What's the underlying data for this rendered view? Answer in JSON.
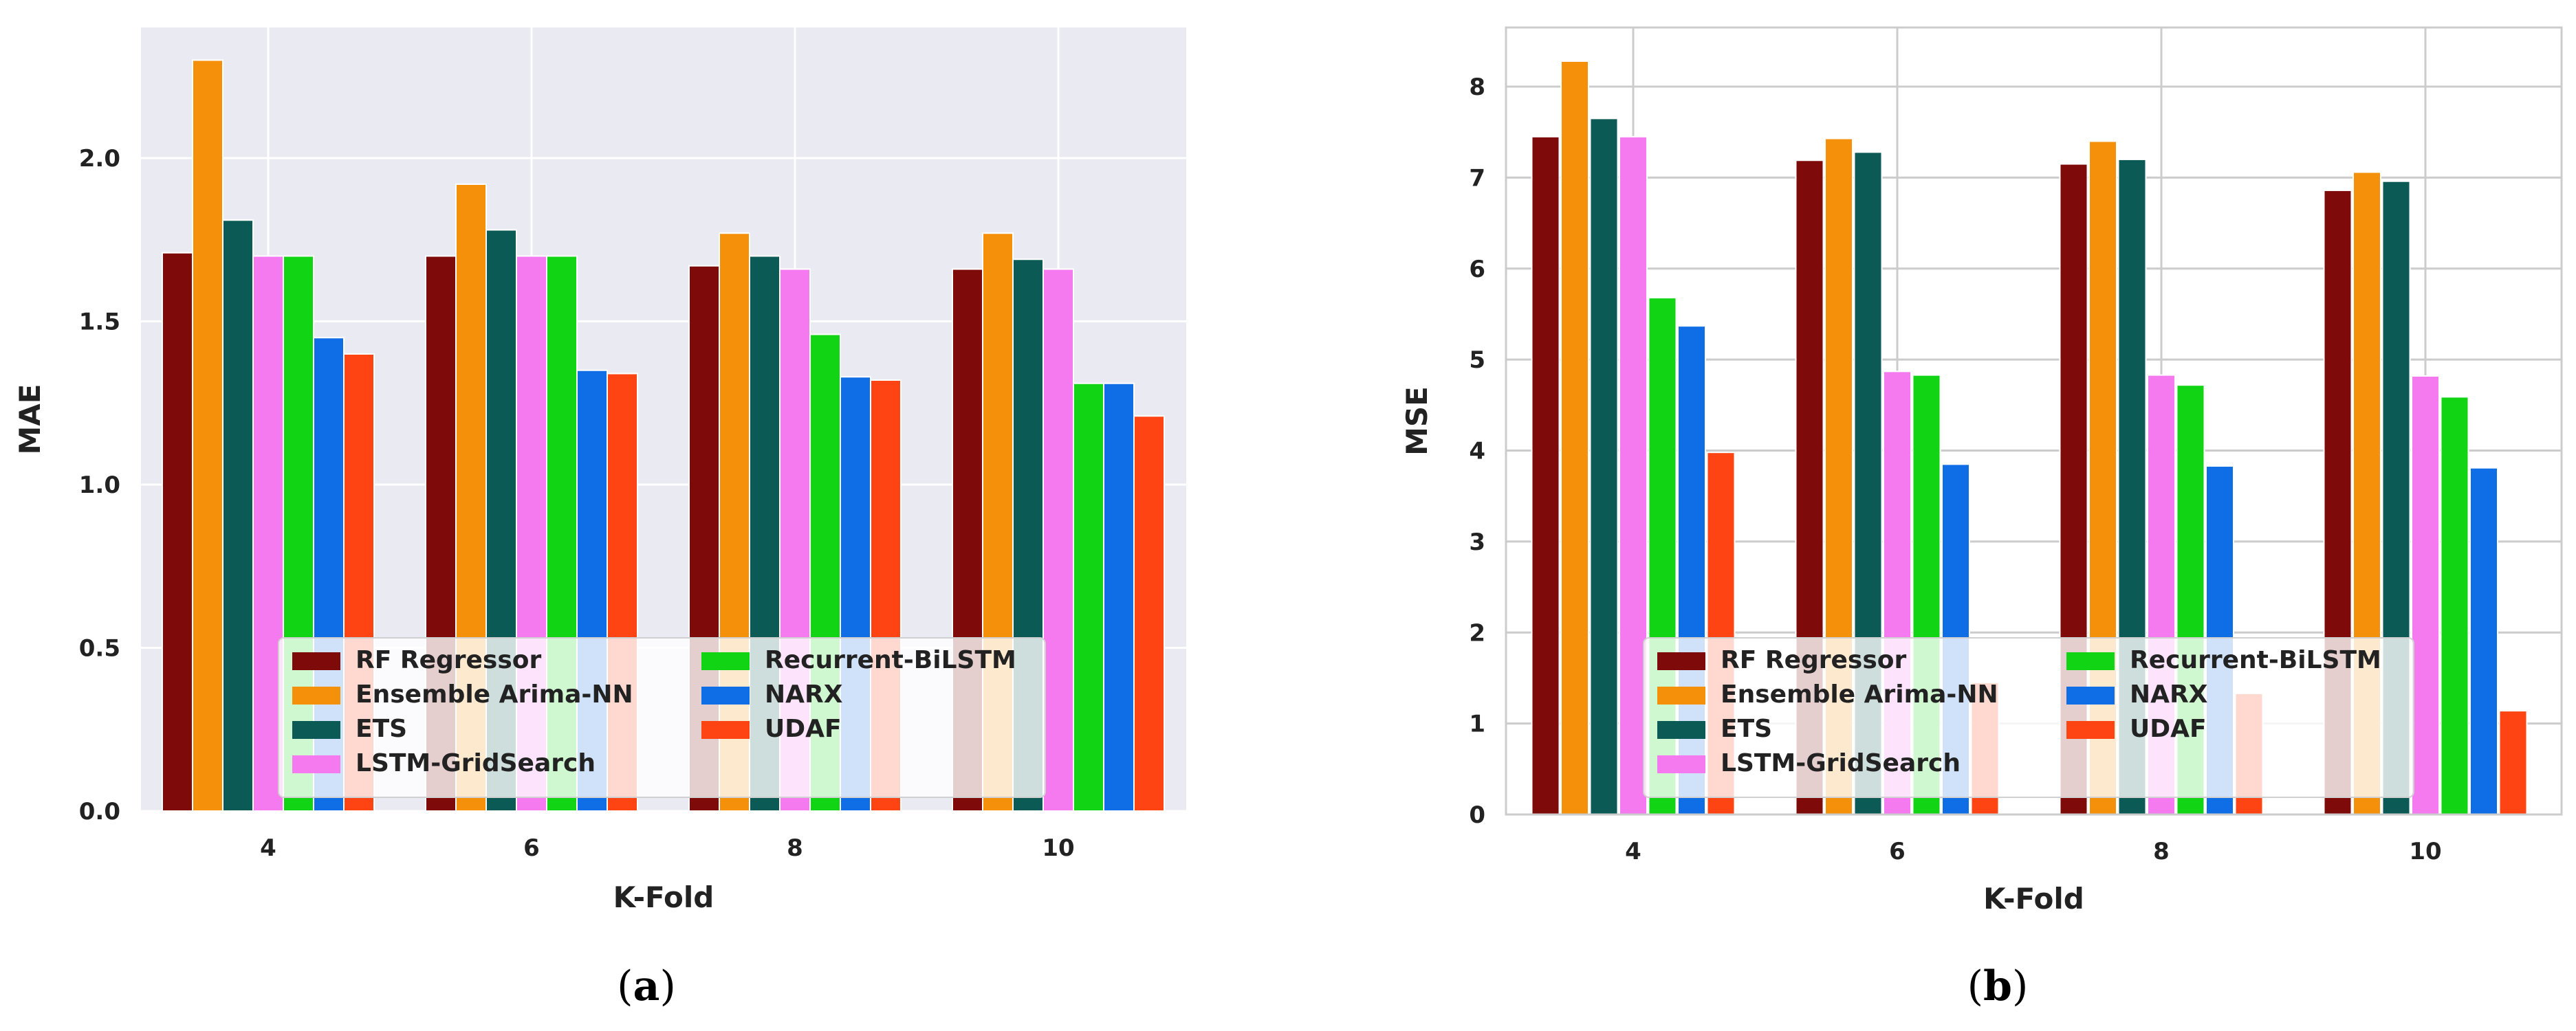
{
  "colors": {
    "rf_regressor": "#7f0a0a",
    "ensemble_arima_nn": "#f5900a",
    "ets": "#0b5a55",
    "lstm_gridsearch": "#f579ef",
    "recurrent_bilstm": "#11d414",
    "narx": "#0f6ee6",
    "udaf": "#ff4413",
    "panel_a_background": "#eaeaf2",
    "panel_b_background": "#ffffff",
    "grid_a": "#ffffff",
    "grid_b": "#cccccc",
    "legend_background": "#ffffff",
    "legend_border": "#d0d0d0"
  },
  "chart_data": [
    {
      "id": "panel-a",
      "type": "bar",
      "caption": {
        "open": "(",
        "letter": "a",
        "close": ")"
      },
      "title": "",
      "xlabel": "K-Fold",
      "ylabel": "MAE",
      "categories": [
        "4",
        "6",
        "8",
        "10"
      ],
      "ylim": [
        0,
        2.4
      ],
      "yticks": [
        0.0,
        0.5,
        1.0,
        1.5,
        2.0
      ],
      "ytick_labels": [
        "0.0",
        "0.5",
        "1.0",
        "1.5",
        "2.0"
      ],
      "grid": true,
      "legend_position": "bottom-center",
      "series": [
        {
          "name": "RF Regressor",
          "color_key": "rf_regressor",
          "values": [
            1.71,
            1.7,
            1.67,
            1.66
          ]
        },
        {
          "name": "Ensemble Arima-NN",
          "color_key": "ensemble_arima_nn",
          "values": [
            2.3,
            1.92,
            1.77,
            1.77
          ]
        },
        {
          "name": "ETS",
          "color_key": "ets",
          "values": [
            1.81,
            1.78,
            1.7,
            1.69
          ]
        },
        {
          "name": "LSTM-GridSearch",
          "color_key": "lstm_gridsearch",
          "values": [
            1.7,
            1.7,
            1.66,
            1.66
          ]
        },
        {
          "name": "Recurrent-BiLSTM",
          "color_key": "recurrent_bilstm",
          "values": [
            1.7,
            1.7,
            1.46,
            1.31
          ]
        },
        {
          "name": "NARX",
          "color_key": "narx",
          "values": [
            1.45,
            1.35,
            1.33,
            1.31
          ]
        },
        {
          "name": "UDAF",
          "color_key": "udaf",
          "values": [
            1.4,
            1.34,
            1.32,
            1.21
          ]
        }
      ]
    },
    {
      "id": "panel-b",
      "type": "bar",
      "caption": {
        "open": "(",
        "letter": "b",
        "close": ")"
      },
      "title": "",
      "xlabel": "K-Fold",
      "ylabel": "MSE",
      "categories": [
        "4",
        "6",
        "8",
        "10"
      ],
      "ylim": [
        0,
        8.65
      ],
      "yticks": [
        0,
        1,
        2,
        3,
        4,
        5,
        6,
        7,
        8
      ],
      "ytick_labels": [
        "0",
        "1",
        "2",
        "3",
        "4",
        "5",
        "6",
        "7",
        "8"
      ],
      "grid": true,
      "legend_position": "bottom-center",
      "series": [
        {
          "name": "RF Regressor",
          "color_key": "rf_regressor",
          "values": [
            7.45,
            7.19,
            7.15,
            6.86
          ]
        },
        {
          "name": "Ensemble Arima-NN",
          "color_key": "ensemble_arima_nn",
          "values": [
            8.28,
            7.43,
            7.4,
            7.06
          ]
        },
        {
          "name": "ETS",
          "color_key": "ets",
          "values": [
            7.65,
            7.28,
            7.2,
            6.96
          ]
        },
        {
          "name": "LSTM-GridSearch",
          "color_key": "lstm_gridsearch",
          "values": [
            7.45,
            4.87,
            4.83,
            4.82
          ]
        },
        {
          "name": "Recurrent-BiLSTM",
          "color_key": "recurrent_bilstm",
          "values": [
            5.68,
            4.83,
            4.72,
            4.59
          ]
        },
        {
          "name": "NARX",
          "color_key": "narx",
          "values": [
            5.37,
            3.85,
            3.83,
            3.81
          ]
        },
        {
          "name": "UDAF",
          "color_key": "udaf",
          "values": [
            3.98,
            1.45,
            1.33,
            1.14
          ]
        }
      ]
    }
  ]
}
